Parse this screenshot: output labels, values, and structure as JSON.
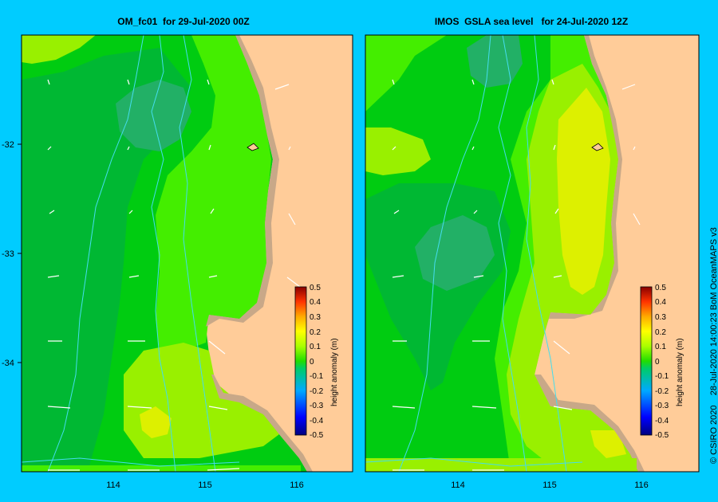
{
  "left_panel": {
    "title": "OM_fc01  for 29-Jul-2020 00Z"
  },
  "right_panel": {
    "title": "IMOS  GSLA sea level   for 24-Jul-2020 12Z"
  },
  "axes": {
    "x_ticks": [
      "114",
      "115",
      "116"
    ],
    "y_ticks": [
      "-32",
      "-33",
      "-34"
    ]
  },
  "colorbar": {
    "label": "height anomaly (m)",
    "ticks": [
      "0.5",
      "0.4",
      "0.3",
      "0.2",
      "0.1",
      "0",
      "-0.1",
      "-0.2",
      "-0.3",
      "-0.4",
      "-0.5"
    ]
  },
  "credit": "© CSIRO 2020    28-Jul-2020 14:00:23 BoM OceanMAPS v3",
  "colors": {
    "background": "#00ccff",
    "land": "#ffcc99",
    "coast": "#c8a888",
    "level_dark_green": "#00b833",
    "level_green": "#00cc11",
    "level_light_green": "#44ee00",
    "level_lime": "#99f000",
    "level_yellow": "#ddf000",
    "level_teal": "#22b066"
  }
}
